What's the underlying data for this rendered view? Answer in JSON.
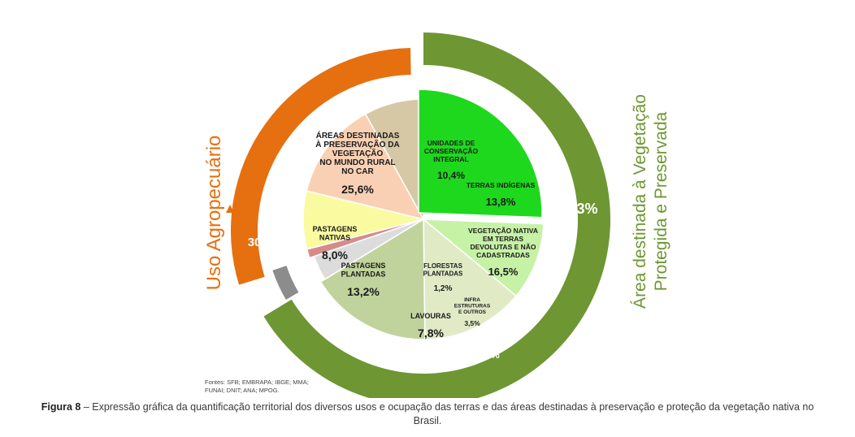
{
  "chart_data": {
    "type": "pie",
    "inner_slices": [
      {
        "label": "ÁREAS DESTINADAS À PRESERVAÇÃO DA VEGETAÇÃO NO MUNDO RURAL NO CAR",
        "value": 25.6,
        "value_label": "25,6%",
        "color": "#1ed81e"
      },
      {
        "label": "UNIDADES DE CONSERVAÇÃO INTEGRAL",
        "value": 10.4,
        "value_label": "10,4%",
        "color": "#c6f2a6"
      },
      {
        "label": "TERRAS INDÍGENAS",
        "value": 13.8,
        "value_label": "13,8%",
        "color": "#e0ebc6"
      },
      {
        "label": "VEGETAÇÃO NATIVA EM TERRAS DEVOLUTAS E NÃO CADASTRADAS",
        "value": 16.5,
        "value_label": "16,5%",
        "color": "#c0d39c"
      },
      {
        "label": "INFRA ESTRUTURAS E OUTROS",
        "value": 3.5,
        "value_label": "3,5%",
        "color": "#dcdcdc"
      },
      {
        "label": "FLORESTAS PLANTADAS",
        "value": 1.2,
        "value_label": "1,2%",
        "color": "#d68a8a"
      },
      {
        "label": "LAVOURAS",
        "value": 7.8,
        "value_label": "7,8%",
        "color": "#fafaa0"
      },
      {
        "label": "PASTAGENS PLANTADAS",
        "value": 13.2,
        "value_label": "13,2%",
        "color": "#fad0b4"
      },
      {
        "label": "PASTAGENS NATIVAS",
        "value": 8.0,
        "value_label": "8,0%",
        "color": "#d6c8a4"
      }
    ],
    "outer_ring": [
      {
        "label": "Área destinada à Vegetação Protegida e Preservada",
        "value": 66.3,
        "value_label": "66,3%",
        "color": "#6e9632"
      },
      {
        "label": "",
        "value": 3.5,
        "value_label": "3,5%",
        "color": "#8c8c8c"
      },
      {
        "label": "Uso Agropecuário",
        "value": 30.2,
        "value_label": "30,2%",
        "color": "#e6700f"
      }
    ],
    "left_title": "Uso Agropecuário",
    "right_title_line1": "Área destinada à Vegetação",
    "right_title_line2": "Protegida e Preservada",
    "source": [
      "Fontes: SFB; EMBRAPA; IBGE; MMA;",
      "FUNAI; DNIT; ANA; MPOG."
    ]
  },
  "caption": {
    "label": "Figura 8",
    "text": " – Expressão gráfica da quantificação territorial dos diversos usos e ocupação das terras e das áreas destinadas à preservação e proteção da vegetação nativa no Brasil."
  }
}
